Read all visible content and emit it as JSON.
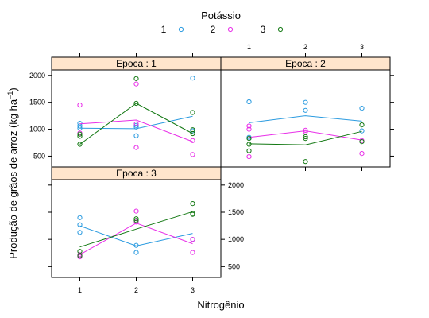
{
  "chart_data": {
    "type": "scatter",
    "title": "",
    "legend": {
      "title": "Potássio",
      "placement": "top",
      "items": [
        {
          "label": "1",
          "color": "#2b9be0"
        },
        {
          "label": "2",
          "color": "#e82ee8"
        },
        {
          "label": "3",
          "color": "#127812"
        }
      ]
    },
    "xlabel": "Nitrogênio",
    "ylabel": "Produção de grãos de arroz (kg ha",
    "ylabel_superscript": "−1",
    "ylabel_suffix": ")",
    "xlim": [
      0.5,
      3.5
    ],
    "ylim": [
      300,
      2100
    ],
    "x_ticks": [
      "1",
      "2",
      "3"
    ],
    "y_ticks": [
      "500",
      "1000",
      "1500",
      "2000"
    ],
    "grid": false,
    "panels": [
      {
        "strip": "Epoca : 1",
        "series": [
          {
            "key": "1",
            "points": [
              [
                1,
                1110
              ],
              [
                1,
                1060
              ],
              [
                1,
                1020
              ],
              [
                2,
                1070
              ],
              [
                2,
                1040
              ],
              [
                2,
                880
              ],
              [
                3,
                1950
              ],
              [
                3,
                970
              ]
            ],
            "line": [
              [
                1,
                1020
              ],
              [
                2,
                1010
              ],
              [
                3,
                1240
              ]
            ]
          },
          {
            "key": "2",
            "points": [
              [
                1,
                1450
              ],
              [
                1,
                930
              ],
              [
                2,
                1840
              ],
              [
                2,
                1100
              ],
              [
                2,
                660
              ],
              [
                3,
                790
              ],
              [
                3,
                530
              ]
            ],
            "line": [
              [
                1,
                1100
              ],
              [
                2,
                1170
              ],
              [
                3,
                770
              ]
            ]
          },
          {
            "key": "3",
            "points": [
              [
                1,
                910
              ],
              [
                1,
                870
              ],
              [
                1,
                720
              ],
              [
                2,
                1940
              ],
              [
                2,
                1480
              ],
              [
                3,
                1310
              ],
              [
                3,
                990
              ],
              [
                3,
                920
              ]
            ],
            "line": [
              [
                1,
                720
              ],
              [
                2,
                1480
              ],
              [
                3,
                920
              ]
            ]
          }
        ]
      },
      {
        "strip": "Epoca : 2",
        "series": [
          {
            "key": "1",
            "points": [
              [
                1,
                1510
              ],
              [
                1,
                850
              ],
              [
                2,
                1500
              ],
              [
                2,
                1350
              ],
              [
                3,
                1390
              ],
              [
                3,
                970
              ]
            ],
            "line": [
              [
                1,
                1120
              ],
              [
                2,
                1250
              ],
              [
                3,
                1150
              ]
            ]
          },
          {
            "key": "2",
            "points": [
              [
                1,
                1060
              ],
              [
                1,
                1000
              ],
              [
                1,
                490
              ],
              [
                2,
                980
              ],
              [
                2,
                950
              ],
              [
                3,
                790
              ],
              [
                3,
                550
              ]
            ],
            "line": [
              [
                1,
                850
              ],
              [
                2,
                970
              ],
              [
                3,
                800
              ]
            ]
          },
          {
            "key": "3",
            "points": [
              [
                1,
                830
              ],
              [
                1,
                720
              ],
              [
                1,
                600
              ],
              [
                2,
                860
              ],
              [
                2,
                830
              ],
              [
                2,
                400
              ],
              [
                3,
                1080
              ],
              [
                3,
                770
              ]
            ],
            "line": [
              [
                1,
                730
              ],
              [
                2,
                710
              ],
              [
                3,
                960
              ]
            ]
          }
        ]
      },
      {
        "strip": "Epoca : 3",
        "series": [
          {
            "key": "1",
            "points": [
              [
                1,
                1400
              ],
              [
                1,
                1270
              ],
              [
                1,
                1130
              ],
              [
                2,
                890
              ],
              [
                2,
                760
              ],
              [
                3,
                1000
              ]
            ],
            "line": [
              [
                1,
                1250
              ],
              [
                2,
                880
              ],
              [
                3,
                1110
              ]
            ]
          },
          {
            "key": "2",
            "points": [
              [
                1,
                720
              ],
              [
                1,
                680
              ],
              [
                2,
                1520
              ],
              [
                2,
                1320
              ],
              [
                3,
                1000
              ],
              [
                3,
                760
              ]
            ],
            "line": [
              [
                1,
                720
              ],
              [
                2,
                1300
              ],
              [
                3,
                920
              ]
            ]
          },
          {
            "key": "3",
            "points": [
              [
                1,
                780
              ],
              [
                1,
                700
              ],
              [
                2,
                1380
              ],
              [
                2,
                1350
              ],
              [
                3,
                1660
              ],
              [
                3,
                1480
              ],
              [
                3,
                1460
              ]
            ],
            "line": [
              [
                1,
                860
              ],
              [
                2,
                1190
              ],
              [
                3,
                1510
              ]
            ]
          }
        ]
      }
    ]
  }
}
